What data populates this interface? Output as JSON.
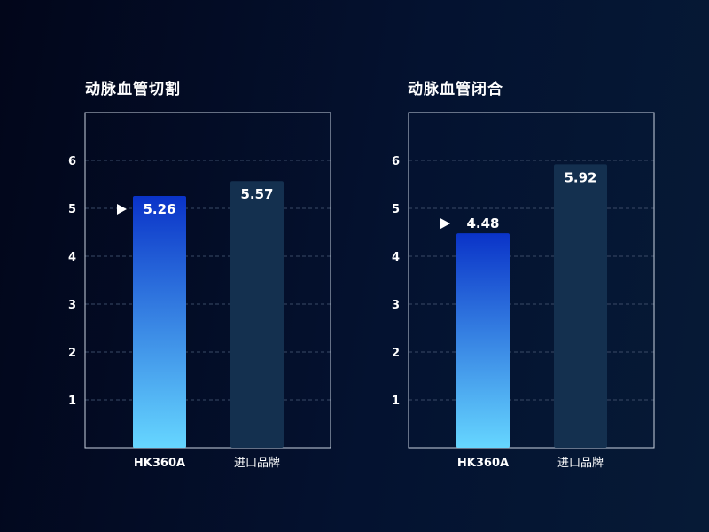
{
  "chart_data": [
    {
      "type": "bar",
      "title": "动脉血管切割",
      "categories": [
        "HK360A",
        "进口品牌"
      ],
      "values": [
        5.26,
        5.57
      ],
      "value_labels": [
        "5.26",
        "5.57"
      ],
      "ylim": [
        0,
        7
      ],
      "yticks": [
        "1",
        "2",
        "3",
        "4",
        "5",
        "6"
      ],
      "grid": true,
      "highlight_index": 0,
      "colors": {
        "highlight_top": "#0a33c8",
        "highlight_bottom": "#66d6ff",
        "other": "#14304f"
      }
    },
    {
      "type": "bar",
      "title": "动脉血管闭合",
      "categories": [
        "HK360A",
        "进口品牌"
      ],
      "values": [
        4.48,
        5.92
      ],
      "value_labels": [
        "4.48",
        "5.92"
      ],
      "ylim": [
        0,
        7
      ],
      "yticks": [
        "1",
        "2",
        "3",
        "4",
        "5",
        "6"
      ],
      "grid": true,
      "highlight_index": 0,
      "colors": {
        "highlight_top": "#0a33c8",
        "highlight_bottom": "#66d6ff",
        "other": "#14304f"
      }
    }
  ]
}
